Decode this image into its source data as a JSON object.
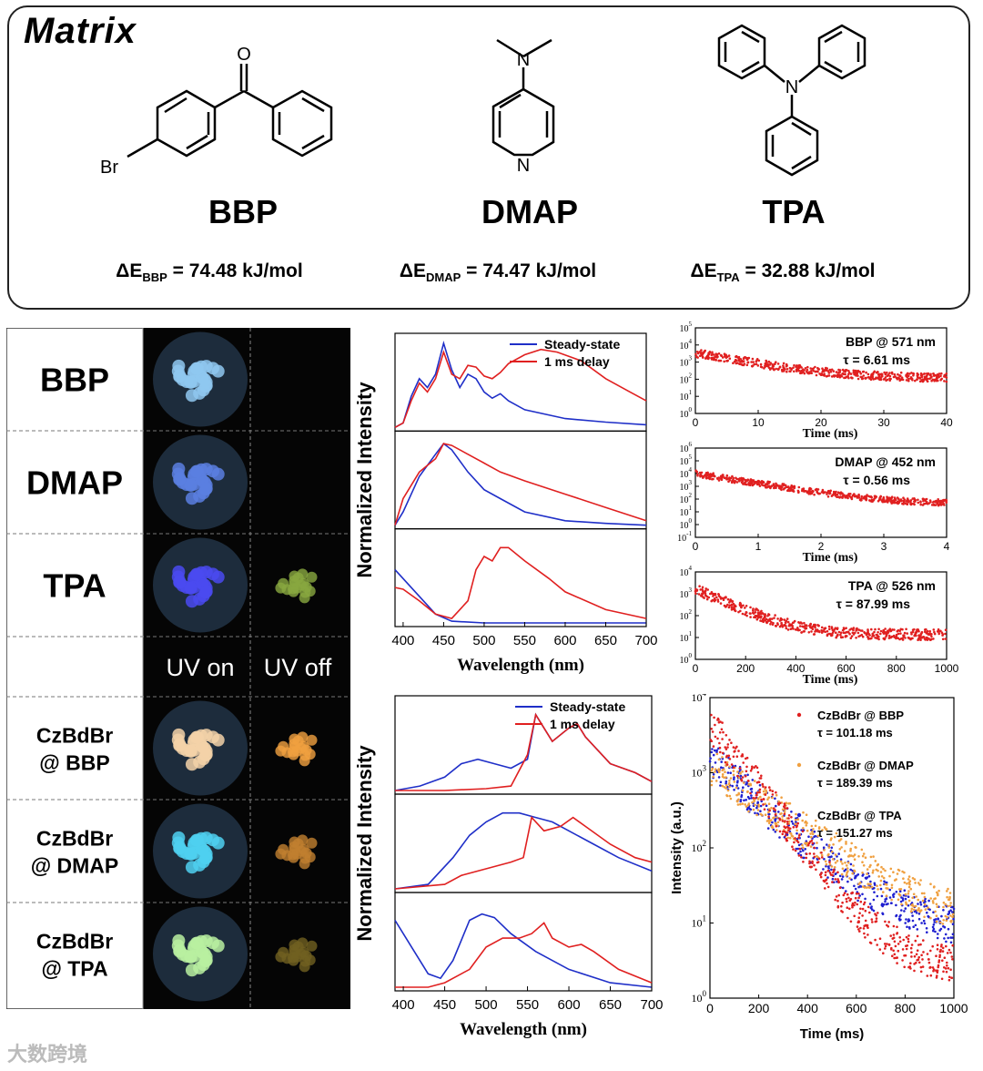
{
  "matrix": {
    "title": "Matrix",
    "molecules": [
      {
        "name": "BBP",
        "atom_labels": [
          "O",
          "Br"
        ],
        "energy_prefix": "ΔE",
        "energy_sub": "BBP",
        "energy_value": " = 74.48 kJ/mol"
      },
      {
        "name": "DMAP",
        "atom_labels": [
          "N",
          "N"
        ],
        "energy_prefix": "ΔE",
        "energy_sub": "DMAP",
        "energy_value": " = 74.47 kJ/mol"
      },
      {
        "name": "TPA",
        "atom_labels": [
          "N"
        ],
        "energy_prefix": "ΔE",
        "energy_sub": "TPA",
        "energy_value": " = 32.88 kJ/mol"
      }
    ]
  },
  "photos": {
    "rows": [
      "BBP",
      "DMAP",
      "TPA",
      "",
      "CzBdBr\n@ BBP",
      "CzBdBr\n@ DMAP",
      "CzBdBr\n@ TPA"
    ],
    "uv_on_label": "UV on",
    "uv_off_label": "UV off",
    "colors": {
      "on": [
        "#8fc8f0",
        "#5a7fe0",
        "#4a4af0",
        null,
        "#f3d2a8",
        "#4fd0f0",
        "#b8f0a0"
      ],
      "off": [
        null,
        null,
        "#88a840",
        null,
        "#f0a040",
        "#c08030",
        "#706020"
      ]
    }
  },
  "chart_data": [
    {
      "id": "pure-matrix-spectra",
      "type": "line",
      "title": "",
      "xlabel": "Wavelength (nm)",
      "ylabel": "Normalized Intensity",
      "xlim": [
        390,
        700
      ],
      "xticks": [
        400,
        450,
        500,
        550,
        600,
        650,
        700
      ],
      "legend": [
        "Steady-state",
        "1 ms delay"
      ],
      "legend_colors": [
        "#1f2fc8",
        "#e02020"
      ],
      "subplots": [
        {
          "name": "BBP",
          "steady": [
            [
              390,
              0.0
            ],
            [
              400,
              0.05
            ],
            [
              410,
              0.35
            ],
            [
              420,
              0.55
            ],
            [
              430,
              0.45
            ],
            [
              440,
              0.6
            ],
            [
              450,
              0.95
            ],
            [
              460,
              0.65
            ],
            [
              470,
              0.45
            ],
            [
              480,
              0.6
            ],
            [
              490,
              0.55
            ],
            [
              500,
              0.4
            ],
            [
              510,
              0.33
            ],
            [
              520,
              0.38
            ],
            [
              530,
              0.3
            ],
            [
              550,
              0.2
            ],
            [
              600,
              0.1
            ],
            [
              650,
              0.06
            ],
            [
              700,
              0.03
            ]
          ],
          "delay": [
            [
              390,
              0.0
            ],
            [
              400,
              0.05
            ],
            [
              410,
              0.3
            ],
            [
              420,
              0.5
            ],
            [
              430,
              0.4
            ],
            [
              440,
              0.55
            ],
            [
              450,
              0.85
            ],
            [
              460,
              0.6
            ],
            [
              470,
              0.55
            ],
            [
              480,
              0.7
            ],
            [
              490,
              0.68
            ],
            [
              500,
              0.58
            ],
            [
              510,
              0.55
            ],
            [
              520,
              0.62
            ],
            [
              530,
              0.72
            ],
            [
              550,
              0.82
            ],
            [
              570,
              0.88
            ],
            [
              590,
              0.85
            ],
            [
              620,
              0.75
            ],
            [
              650,
              0.55
            ],
            [
              680,
              0.4
            ],
            [
              700,
              0.3
            ]
          ]
        },
        {
          "name": "DMAP",
          "steady": [
            [
              390,
              0.0
            ],
            [
              400,
              0.15
            ],
            [
              420,
              0.55
            ],
            [
              440,
              0.8
            ],
            [
              450,
              0.92
            ],
            [
              460,
              0.85
            ],
            [
              480,
              0.6
            ],
            [
              500,
              0.4
            ],
            [
              520,
              0.3
            ],
            [
              550,
              0.15
            ],
            [
              600,
              0.05
            ],
            [
              650,
              0.02
            ],
            [
              700,
              0.0
            ]
          ],
          "delay": [
            [
              390,
              0.0
            ],
            [
              400,
              0.3
            ],
            [
              420,
              0.6
            ],
            [
              440,
              0.75
            ],
            [
              450,
              0.92
            ],
            [
              460,
              0.9
            ],
            [
              480,
              0.8
            ],
            [
              500,
              0.7
            ],
            [
              520,
              0.6
            ],
            [
              550,
              0.5
            ],
            [
              600,
              0.35
            ],
            [
              650,
              0.2
            ],
            [
              700,
              0.05
            ]
          ]
        },
        {
          "name": "TPA",
          "steady": [
            [
              390,
              0.6
            ],
            [
              400,
              0.5
            ],
            [
              420,
              0.3
            ],
            [
              440,
              0.1
            ],
            [
              460,
              0.02
            ],
            [
              500,
              0.0
            ],
            [
              600,
              0.0
            ],
            [
              700,
              0.0
            ]
          ],
          "delay": [
            [
              390,
              0.4
            ],
            [
              400,
              0.38
            ],
            [
              420,
              0.25
            ],
            [
              440,
              0.1
            ],
            [
              460,
              0.05
            ],
            [
              480,
              0.25
            ],
            [
              490,
              0.6
            ],
            [
              500,
              0.75
            ],
            [
              510,
              0.7
            ],
            [
              520,
              0.85
            ],
            [
              530,
              0.85
            ],
            [
              550,
              0.7
            ],
            [
              580,
              0.5
            ],
            [
              600,
              0.35
            ],
            [
              650,
              0.15
            ],
            [
              700,
              0.05
            ]
          ]
        }
      ]
    },
    {
      "id": "pure-matrix-decay",
      "type": "scatter",
      "panels": [
        {
          "label": "BBP @ 571 nm",
          "tau": "τ = 6.61 ms",
          "xlabel": "Time (ms)",
          "xlim": [
            0,
            40
          ],
          "xticks": [
            0,
            10,
            20,
            30,
            40
          ],
          "ylim_exp": [
            0,
            5
          ],
          "tau_ms": 6.61,
          "color": "#e02020"
        },
        {
          "label": "DMAP @ 452 nm",
          "tau": "τ = 0.56 ms",
          "xlabel": "Time (ms)",
          "xlim": [
            0,
            4
          ],
          "xticks": [
            0,
            1,
            2,
            3,
            4
          ],
          "ylim_exp": [
            -1,
            6
          ],
          "tau_ms": 0.56,
          "color": "#e02020"
        },
        {
          "label": "TPA @ 526 nm",
          "tau": "τ = 87.99 ms",
          "xlabel": "Time (ms)",
          "xlim": [
            0,
            1000
          ],
          "xticks": [
            0,
            200,
            400,
            600,
            800,
            1000
          ],
          "ylim_exp": [
            0,
            4
          ],
          "tau_ms": 87.99,
          "color": "#e02020"
        }
      ]
    },
    {
      "id": "doped-spectra",
      "type": "line",
      "xlabel": "Wavelength (nm)",
      "ylabel": "Normalized Intensity",
      "xlim": [
        390,
        700
      ],
      "xticks": [
        400,
        450,
        500,
        550,
        600,
        650,
        700
      ],
      "xtick_labels": [
        "400",
        "450",
        "500",
        "550",
        "600",
        "650",
        "700"
      ],
      "legend": [
        "Steady-state",
        "1 ms delay"
      ],
      "legend_colors": [
        "#1f2fc8",
        "#e02020"
      ],
      "subplots": [
        {
          "name": "CzBdBr@BBP",
          "steady": [
            [
              390,
              0.0
            ],
            [
              420,
              0.05
            ],
            [
              450,
              0.15
            ],
            [
              470,
              0.3
            ],
            [
              490,
              0.35
            ],
            [
              510,
              0.3
            ],
            [
              530,
              0.25
            ],
            [
              550,
              0.35
            ],
            [
              560,
              0.85
            ],
            [
              570,
              0.7
            ],
            [
              580,
              0.55
            ],
            [
              600,
              0.7
            ],
            [
              610,
              0.75
            ],
            [
              620,
              0.6
            ],
            [
              650,
              0.3
            ],
            [
              680,
              0.2
            ],
            [
              700,
              0.1
            ]
          ],
          "delay": [
            [
              390,
              0.0
            ],
            [
              450,
              0.0
            ],
            [
              500,
              0.02
            ],
            [
              530,
              0.05
            ],
            [
              550,
              0.4
            ],
            [
              560,
              0.85
            ],
            [
              570,
              0.7
            ],
            [
              580,
              0.55
            ],
            [
              600,
              0.7
            ],
            [
              610,
              0.75
            ],
            [
              620,
              0.6
            ],
            [
              650,
              0.3
            ],
            [
              680,
              0.2
            ],
            [
              700,
              0.1
            ]
          ]
        },
        {
          "name": "CzBdBr@DMAP",
          "steady": [
            [
              390,
              0.0
            ],
            [
              430,
              0.05
            ],
            [
              460,
              0.35
            ],
            [
              480,
              0.6
            ],
            [
              500,
              0.75
            ],
            [
              520,
              0.85
            ],
            [
              540,
              0.85
            ],
            [
              560,
              0.8
            ],
            [
              580,
              0.75
            ],
            [
              600,
              0.65
            ],
            [
              630,
              0.5
            ],
            [
              660,
              0.35
            ],
            [
              700,
              0.2
            ]
          ],
          "delay": [
            [
              390,
              0.0
            ],
            [
              450,
              0.05
            ],
            [
              470,
              0.15
            ],
            [
              490,
              0.2
            ],
            [
              510,
              0.25
            ],
            [
              530,
              0.3
            ],
            [
              545,
              0.35
            ],
            [
              555,
              0.8
            ],
            [
              570,
              0.65
            ],
            [
              590,
              0.7
            ],
            [
              605,
              0.8
            ],
            [
              620,
              0.7
            ],
            [
              650,
              0.5
            ],
            [
              680,
              0.35
            ],
            [
              700,
              0.3
            ]
          ]
        },
        {
          "name": "CzBdBr@TPA",
          "steady": [
            [
              390,
              0.75
            ],
            [
              410,
              0.45
            ],
            [
              430,
              0.15
            ],
            [
              445,
              0.1
            ],
            [
              460,
              0.3
            ],
            [
              480,
              0.75
            ],
            [
              495,
              0.82
            ],
            [
              510,
              0.78
            ],
            [
              530,
              0.6
            ],
            [
              560,
              0.4
            ],
            [
              600,
              0.2
            ],
            [
              650,
              0.05
            ],
            [
              700,
              0.0
            ]
          ],
          "delay": [
            [
              390,
              0.0
            ],
            [
              430,
              0.0
            ],
            [
              450,
              0.05
            ],
            [
              480,
              0.2
            ],
            [
              500,
              0.45
            ],
            [
              520,
              0.55
            ],
            [
              540,
              0.55
            ],
            [
              555,
              0.6
            ],
            [
              570,
              0.72
            ],
            [
              580,
              0.55
            ],
            [
              600,
              0.45
            ],
            [
              615,
              0.48
            ],
            [
              630,
              0.4
            ],
            [
              660,
              0.2
            ],
            [
              700,
              0.05
            ]
          ]
        }
      ]
    },
    {
      "id": "doped-decay",
      "type": "scatter",
      "xlabel": "Time (ms)",
      "ylabel": "Intensity (a.u.)",
      "xlim": [
        0,
        1000
      ],
      "xticks": [
        0,
        200,
        400,
        600,
        800,
        1000
      ],
      "ylim_exp": [
        0,
        4
      ],
      "series": [
        {
          "name": "CzBdBr @ BBP",
          "tau": "τ = 101.18 ms",
          "tau_ms": 101.18,
          "color": "#e02020"
        },
        {
          "name": "CzBdBr @ DMAP",
          "tau": "τ = 189.39 ms",
          "tau_ms": 189.39,
          "color": "#f0a040"
        },
        {
          "name": "CzBdBr @ TPA",
          "tau": "τ = 151.27 ms",
          "tau_ms": 151.27,
          "color": "#2020d0"
        }
      ]
    }
  ],
  "watermark": "大数跨境"
}
